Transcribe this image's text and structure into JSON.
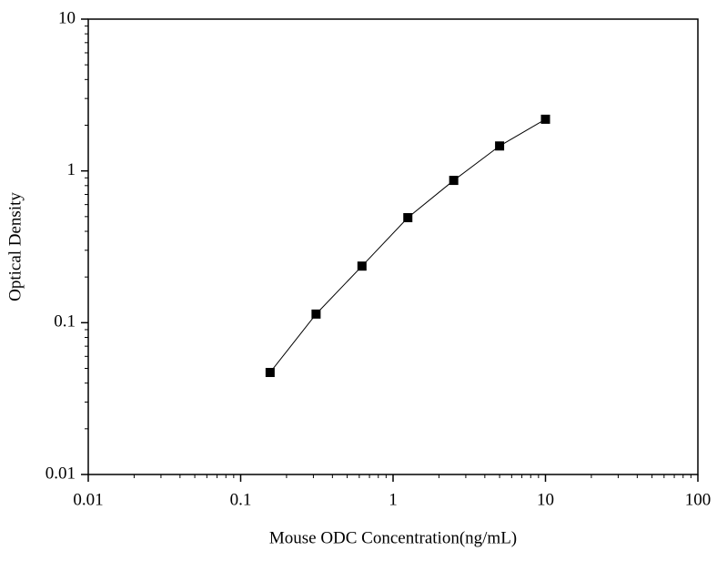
{
  "chart_data": {
    "type": "line",
    "x_label": "Mouse ODC Concentration(ng/mL)",
    "y_label": "Optical Density",
    "x": [
      0.156,
      0.3125,
      0.625,
      1.25,
      2.5,
      5,
      10
    ],
    "series": [
      {
        "color": "#000000",
        "values": [
          0.047,
          0.114,
          0.236,
          0.492,
          0.866,
          1.46,
          2.19
        ]
      }
    ],
    "xlim": [
      0.01,
      100
    ],
    "ylim": [
      0.01,
      10
    ],
    "xticks": [
      0.01,
      0.1,
      1,
      10,
      100
    ],
    "yticks": [
      0.01,
      0.1,
      1,
      10
    ],
    "xscale": "log",
    "yscale": "log",
    "minor_ticks": true,
    "markers": "square"
  }
}
